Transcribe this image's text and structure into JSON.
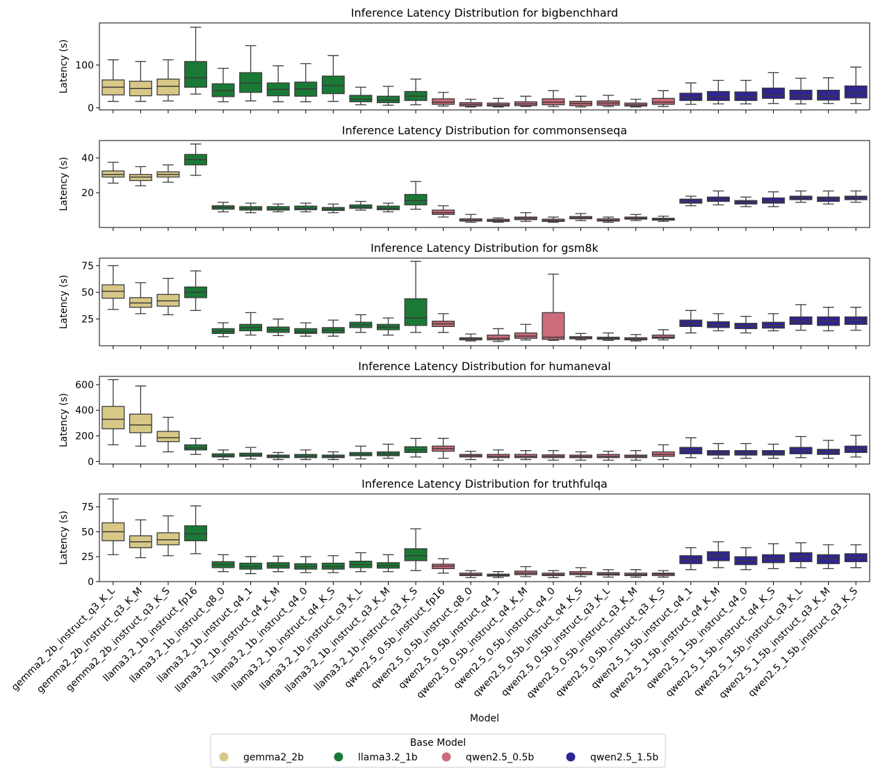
{
  "chart_data": {
    "type": "boxplot",
    "xlabel": "Model",
    "ylabel": "Latency (s)",
    "legend_title": "Base Model",
    "legend_position": "bottom-center",
    "models": [
      "gemma2_2b_instruct_q3_K_L",
      "gemma2_2b_instruct_q3_K_M",
      "gemma2_2b_instruct_q3_K_S",
      "llama3.2_1b_instruct_fp16",
      "llama3.2_1b_instruct_q8_0",
      "llama3.2_1b_instruct_q4_1",
      "llama3.2_1b_instruct_q4_K_M",
      "llama3.2_1b_instruct_q4_0",
      "llama3.2_1b_instruct_q4_K_S",
      "llama3.2_1b_instruct_q3_K_L",
      "llama3.2_1b_instruct_q3_K_M",
      "llama3.2_1b_instruct_q3_K_S",
      "qwen2.5_0.5b_instruct_fp16",
      "qwen2.5_0.5b_instruct_q8_0",
      "qwen2.5_0.5b_instruct_q4_1",
      "qwen2.5_0.5b_instruct_q4_K_M",
      "qwen2.5_0.5b_instruct_q4_0",
      "qwen2.5_0.5b_instruct_q4_K_S",
      "qwen2.5_0.5b_instruct_q3_K_L",
      "qwen2.5_0.5b_instruct_q3_K_M",
      "qwen2.5_0.5b_instruct_q3_K_S",
      "qwen2.5_1.5b_instruct_q4_1",
      "qwen2.5_1.5b_instruct_q4_K_M",
      "qwen2.5_1.5b_instruct_q4_0",
      "qwen2.5_1.5b_instruct_q4_K_S",
      "qwen2.5_1.5b_instruct_q3_K_L",
      "qwen2.5_1.5b_instruct_q3_K_M",
      "qwen2.5_1.5b_instruct_q3_K_S"
    ],
    "groups": [
      "gemma2_2b",
      "gemma2_2b",
      "gemma2_2b",
      "llama3.2_1b",
      "llama3.2_1b",
      "llama3.2_1b",
      "llama3.2_1b",
      "llama3.2_1b",
      "llama3.2_1b",
      "llama3.2_1b",
      "llama3.2_1b",
      "llama3.2_1b",
      "qwen2.5_0.5b",
      "qwen2.5_0.5b",
      "qwen2.5_0.5b",
      "qwen2.5_0.5b",
      "qwen2.5_0.5b",
      "qwen2.5_0.5b",
      "qwen2.5_0.5b",
      "qwen2.5_0.5b",
      "qwen2.5_0.5b",
      "qwen2.5_1.5b",
      "qwen2.5_1.5b",
      "qwen2.5_1.5b",
      "qwen2.5_1.5b",
      "qwen2.5_1.5b",
      "qwen2.5_1.5b",
      "qwen2.5_1.5b"
    ],
    "legend": [
      {
        "label": "gemma2_2b",
        "color": "#d8c887"
      },
      {
        "label": "llama3.2_1b",
        "color": "#1a7a35"
      },
      {
        "label": "qwen2.5_0.5b",
        "color": "#cc6b7a"
      },
      {
        "label": "qwen2.5_1.5b",
        "color": "#2f2590"
      }
    ],
    "panels": [
      {
        "title": "Inference Latency Distribution for bigbenchhard",
        "ylim": [
          -5,
          198
        ],
        "yticks": [
          0,
          100
        ],
        "boxes": [
          [
            15,
            30,
            48,
            65,
            112
          ],
          [
            15,
            28,
            45,
            62,
            108
          ],
          [
            16,
            30,
            50,
            67,
            112
          ],
          [
            32,
            48,
            70,
            108,
            188
          ],
          [
            14,
            26,
            40,
            56,
            92
          ],
          [
            16,
            36,
            58,
            82,
            145
          ],
          [
            14,
            28,
            43,
            58,
            98
          ],
          [
            14,
            27,
            44,
            60,
            103
          ],
          [
            15,
            33,
            52,
            74,
            122
          ],
          [
            7,
            14,
            20,
            29,
            48
          ],
          [
            6,
            12,
            18,
            27,
            50
          ],
          [
            7,
            17,
            27,
            38,
            67
          ],
          [
            4,
            8,
            13,
            21,
            36
          ],
          [
            2,
            4,
            8,
            12,
            20
          ],
          [
            2,
            4,
            7,
            11,
            22
          ],
          [
            3,
            5,
            9,
            14,
            27
          ],
          [
            3,
            7,
            13,
            21,
            40
          ],
          [
            2,
            5,
            10,
            15,
            27
          ],
          [
            3,
            6,
            11,
            16,
            29
          ],
          [
            2,
            4,
            7,
            11,
            20
          ],
          [
            3,
            8,
            13,
            22,
            40
          ],
          [
            8,
            17,
            24,
            34,
            58
          ],
          [
            9,
            17,
            26,
            38,
            64
          ],
          [
            9,
            17,
            25,
            37,
            64
          ],
          [
            10,
            22,
            30,
            46,
            82
          ],
          [
            9,
            19,
            28,
            41,
            69
          ],
          [
            10,
            18,
            27,
            41,
            70
          ],
          [
            10,
            23,
            35,
            51,
            95
          ]
        ]
      },
      {
        "title": "Inference Latency Distribution for commonsenseqa",
        "ylim": [
          0,
          50
        ],
        "yticks": [
          20,
          40
        ],
        "boxes": [
          [
            25.5,
            29,
            30.5,
            32.5,
            37.5
          ],
          [
            24,
            27,
            29,
            30.5,
            35
          ],
          [
            26,
            29,
            30.5,
            32,
            36
          ],
          [
            30,
            36,
            39,
            42,
            48
          ],
          [
            9,
            10.5,
            11.5,
            12.5,
            14.5
          ],
          [
            8.5,
            10,
            11,
            12,
            14
          ],
          [
            9,
            10,
            10.8,
            12,
            13.5
          ],
          [
            9,
            10.2,
            11,
            12.3,
            14
          ],
          [
            8.5,
            9.8,
            10.5,
            11.5,
            13.5
          ],
          [
            10,
            11,
            11.8,
            13,
            15
          ],
          [
            9,
            10.2,
            11,
            12.3,
            14
          ],
          [
            10.5,
            13,
            15.5,
            19,
            26.5
          ],
          [
            6,
            7.5,
            8.5,
            10,
            12.5
          ],
          [
            3,
            3.7,
            4.2,
            5,
            7.5
          ],
          [
            3,
            3.5,
            4,
            4.7,
            5.5
          ],
          [
            3.5,
            4.5,
            5.3,
            6,
            8.5
          ],
          [
            3,
            3.5,
            4,
            4.8,
            6
          ],
          [
            4,
            5,
            5.6,
            6.3,
            8
          ],
          [
            3,
            3.7,
            4.2,
            5,
            6
          ],
          [
            4,
            4.8,
            5.3,
            6,
            7.5
          ],
          [
            3.5,
            4.2,
            4.7,
            5.3,
            6.5
          ],
          [
            12.5,
            14,
            15,
            16.3,
            18
          ],
          [
            13,
            15,
            16,
            17.5,
            21
          ],
          [
            12,
            13.5,
            14.5,
            15.5,
            17.5
          ],
          [
            12,
            14,
            15.2,
            17,
            20.5
          ],
          [
            14.5,
            16,
            17,
            18,
            21
          ],
          [
            13.5,
            15,
            16.3,
            17.5,
            21
          ],
          [
            14.5,
            16,
            17,
            18,
            21
          ]
        ]
      },
      {
        "title": "Inference Latency Distribution for gsm8k",
        "ylim": [
          0,
          82
        ],
        "yticks": [
          25,
          50,
          75
        ],
        "boxes": [
          [
            34,
            44.5,
            51,
            57,
            75
          ],
          [
            30,
            36,
            40,
            45,
            59
          ],
          [
            29,
            37,
            42,
            48,
            63
          ],
          [
            33,
            45,
            50,
            55,
            70
          ],
          [
            8.5,
            11.5,
            13.5,
            16,
            21.5
          ],
          [
            10,
            14,
            17,
            20,
            31
          ],
          [
            9.5,
            12.5,
            15,
            17.5,
            25
          ],
          [
            9,
            11.5,
            13,
            16,
            21.5
          ],
          [
            9,
            12,
            14.5,
            17,
            24
          ],
          [
            12.5,
            17,
            19.5,
            22,
            29
          ],
          [
            10,
            15,
            17.5,
            20,
            26
          ],
          [
            12.5,
            19,
            26,
            44,
            79
          ],
          [
            12.5,
            18,
            20.5,
            23,
            30
          ],
          [
            4.5,
            5.5,
            6.5,
            7.5,
            11
          ],
          [
            4,
            5.5,
            7,
            10,
            16
          ],
          [
            5.5,
            7,
            9,
            12,
            20
          ],
          [
            5,
            6,
            8,
            31,
            67
          ],
          [
            5.5,
            6.5,
            7.5,
            8.5,
            11.5
          ],
          [
            5,
            6,
            7,
            8,
            12
          ],
          [
            4.5,
            5.5,
            6.5,
            7.5,
            10.5
          ],
          [
            5.5,
            7,
            8,
            10,
            15
          ],
          [
            12,
            18,
            21,
            24,
            33
          ],
          [
            14,
            17,
            19.5,
            22.5,
            30
          ],
          [
            12,
            16,
            18.5,
            21,
            27.5
          ],
          [
            14,
            16.5,
            19,
            22,
            30
          ],
          [
            14.5,
            20,
            23,
            27,
            38.5
          ],
          [
            14,
            19,
            23,
            27,
            36
          ],
          [
            14.5,
            20,
            24,
            27,
            36
          ]
        ]
      },
      {
        "title": "Inference Latency Distribution for humaneval",
        "ylim": [
          -20,
          665
        ],
        "yticks": [
          0,
          200,
          400,
          600
        ],
        "boxes": [
          [
            130,
            255,
            330,
            430,
            640
          ],
          [
            120,
            225,
            285,
            370,
            590
          ],
          [
            75,
            155,
            185,
            235,
            345
          ],
          [
            55,
            90,
            105,
            130,
            180
          ],
          [
            15,
            35,
            45,
            60,
            90
          ],
          [
            20,
            40,
            50,
            65,
            110
          ],
          [
            15,
            30,
            40,
            50,
            70
          ],
          [
            15,
            30,
            42,
            55,
            90
          ],
          [
            15,
            30,
            38,
            50,
            75
          ],
          [
            20,
            45,
            55,
            70,
            120
          ],
          [
            25,
            45,
            58,
            75,
            135
          ],
          [
            35,
            70,
            90,
            115,
            180
          ],
          [
            25,
            80,
            100,
            120,
            180
          ],
          [
            15,
            35,
            45,
            55,
            80
          ],
          [
            10,
            30,
            40,
            55,
            90
          ],
          [
            15,
            30,
            40,
            55,
            85
          ],
          [
            10,
            30,
            40,
            52,
            85
          ],
          [
            10,
            30,
            38,
            50,
            75
          ],
          [
            10,
            30,
            40,
            55,
            80
          ],
          [
            10,
            30,
            40,
            50,
            85
          ],
          [
            15,
            40,
            55,
            75,
            130
          ],
          [
            30,
            60,
            85,
            110,
            185
          ],
          [
            25,
            50,
            65,
            85,
            140
          ],
          [
            25,
            50,
            68,
            85,
            140
          ],
          [
            25,
            50,
            65,
            85,
            135
          ],
          [
            30,
            60,
            85,
            110,
            195
          ],
          [
            25,
            55,
            75,
            95,
            165
          ],
          [
            35,
            70,
            95,
            120,
            205
          ]
        ]
      },
      {
        "title": "Inference Latency Distribution for truthfulqa",
        "ylim": [
          0,
          88
        ],
        "yticks": [
          0,
          25,
          50,
          75
        ],
        "boxes": [
          [
            27,
            41,
            50,
            59,
            83
          ],
          [
            24,
            34,
            40,
            46,
            62
          ],
          [
            26,
            37,
            42,
            49,
            66
          ],
          [
            28,
            41,
            48,
            56,
            76
          ],
          [
            10,
            14,
            17,
            20,
            27
          ],
          [
            8,
            12.5,
            15,
            18.5,
            25
          ],
          [
            10,
            13.5,
            16,
            19,
            25.5
          ],
          [
            9,
            12.5,
            15,
            18,
            25
          ],
          [
            9,
            12.5,
            15,
            18.5,
            26
          ],
          [
            10,
            14,
            17,
            20.5,
            29
          ],
          [
            10,
            13.5,
            16,
            19,
            27
          ],
          [
            11,
            21,
            26,
            33,
            53
          ],
          [
            8.5,
            13,
            15.5,
            17.5,
            23
          ],
          [
            4,
            6,
            7,
            8.5,
            11
          ],
          [
            4,
            5.5,
            6.5,
            7.5,
            10
          ],
          [
            5,
            7,
            8.5,
            10.5,
            15
          ],
          [
            4,
            6,
            7,
            8.5,
            11
          ],
          [
            5,
            7,
            8,
            10,
            14
          ],
          [
            4.5,
            6.5,
            7.5,
            9,
            12
          ],
          [
            4.5,
            6,
            7,
            8.5,
            12
          ],
          [
            4.5,
            6,
            7.5,
            8.5,
            11
          ],
          [
            12,
            18,
            22,
            26,
            34
          ],
          [
            14,
            21,
            26,
            30,
            40
          ],
          [
            12,
            17,
            21,
            25,
            34
          ],
          [
            13,
            19,
            23,
            27,
            38
          ],
          [
            14,
            20,
            25,
            29,
            39
          ],
          [
            13,
            18,
            23,
            27,
            37
          ],
          [
            14,
            20,
            24,
            28,
            37
          ]
        ]
      }
    ]
  }
}
